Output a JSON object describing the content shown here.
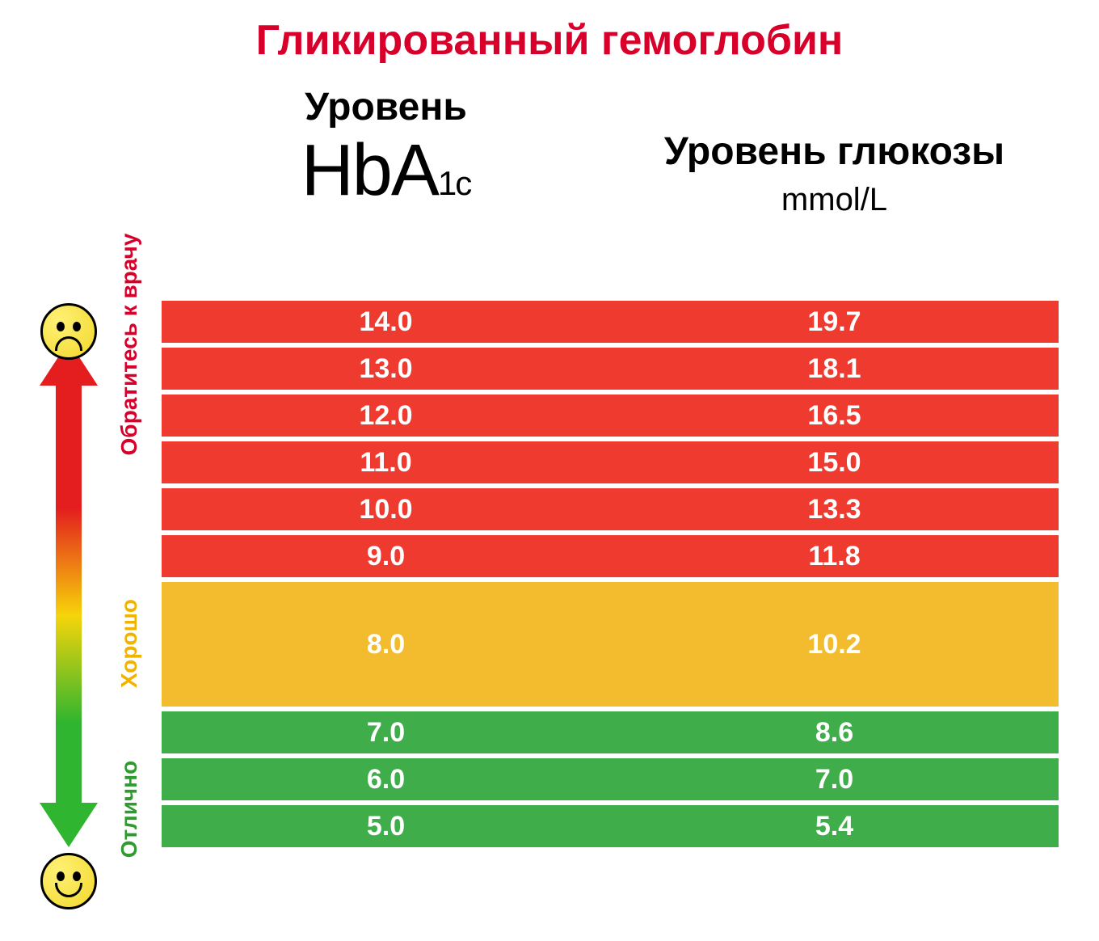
{
  "title": {
    "text": "Гликированный гемоглобин",
    "color": "#d8002a",
    "fontsize": 52
  },
  "headers": {
    "col1_line1": "Уровень",
    "col1_hba_main": "HbA",
    "col1_hba_sub": "1c",
    "col2_line1": "Уровень глюкозы",
    "col2_unit": "mmol/L"
  },
  "categories": {
    "bad": {
      "label": "Обратитесь к врачу",
      "color": "#d8002a"
    },
    "ok": {
      "label": "Хорошо",
      "color": "#f0b400"
    },
    "great": {
      "label": "Отлично",
      "color": "#2f9a2f"
    }
  },
  "row_colors": {
    "red": "#ef3b2f",
    "yellow": "#f3bc2e",
    "green": "#3fae4a"
  },
  "rows": [
    {
      "hba": "14.0",
      "glucose": "19.7",
      "band": "red",
      "height": "short"
    },
    {
      "hba": "13.0",
      "glucose": "18.1",
      "band": "red",
      "height": "short"
    },
    {
      "hba": "12.0",
      "glucose": "16.5",
      "band": "red",
      "height": "short"
    },
    {
      "hba": "11.0",
      "glucose": "15.0",
      "band": "red",
      "height": "short"
    },
    {
      "hba": "10.0",
      "glucose": "13.3",
      "band": "red",
      "height": "short"
    },
    {
      "hba": "9.0",
      "glucose": "11.8",
      "band": "red",
      "height": "short"
    },
    {
      "hba": "8.0",
      "glucose": "10.2",
      "band": "yellow",
      "height": "tall"
    },
    {
      "hba": "7.0",
      "glucose": "8.6",
      "band": "green",
      "height": "short"
    },
    {
      "hba": "6.0",
      "glucose": "7.0",
      "band": "green",
      "height": "short"
    },
    {
      "hba": "5.0",
      "glucose": "5.4",
      "band": "green",
      "height": "short"
    }
  ],
  "arrow": {
    "top_color": "#e41e1e",
    "mid_color": "#f6d40a",
    "bottom_color": "#2fb52f"
  },
  "face_fill": "#f2d82a",
  "text_cell_color": "#ffffff",
  "cell_fontsize": 34,
  "background_color": "#ffffff"
}
